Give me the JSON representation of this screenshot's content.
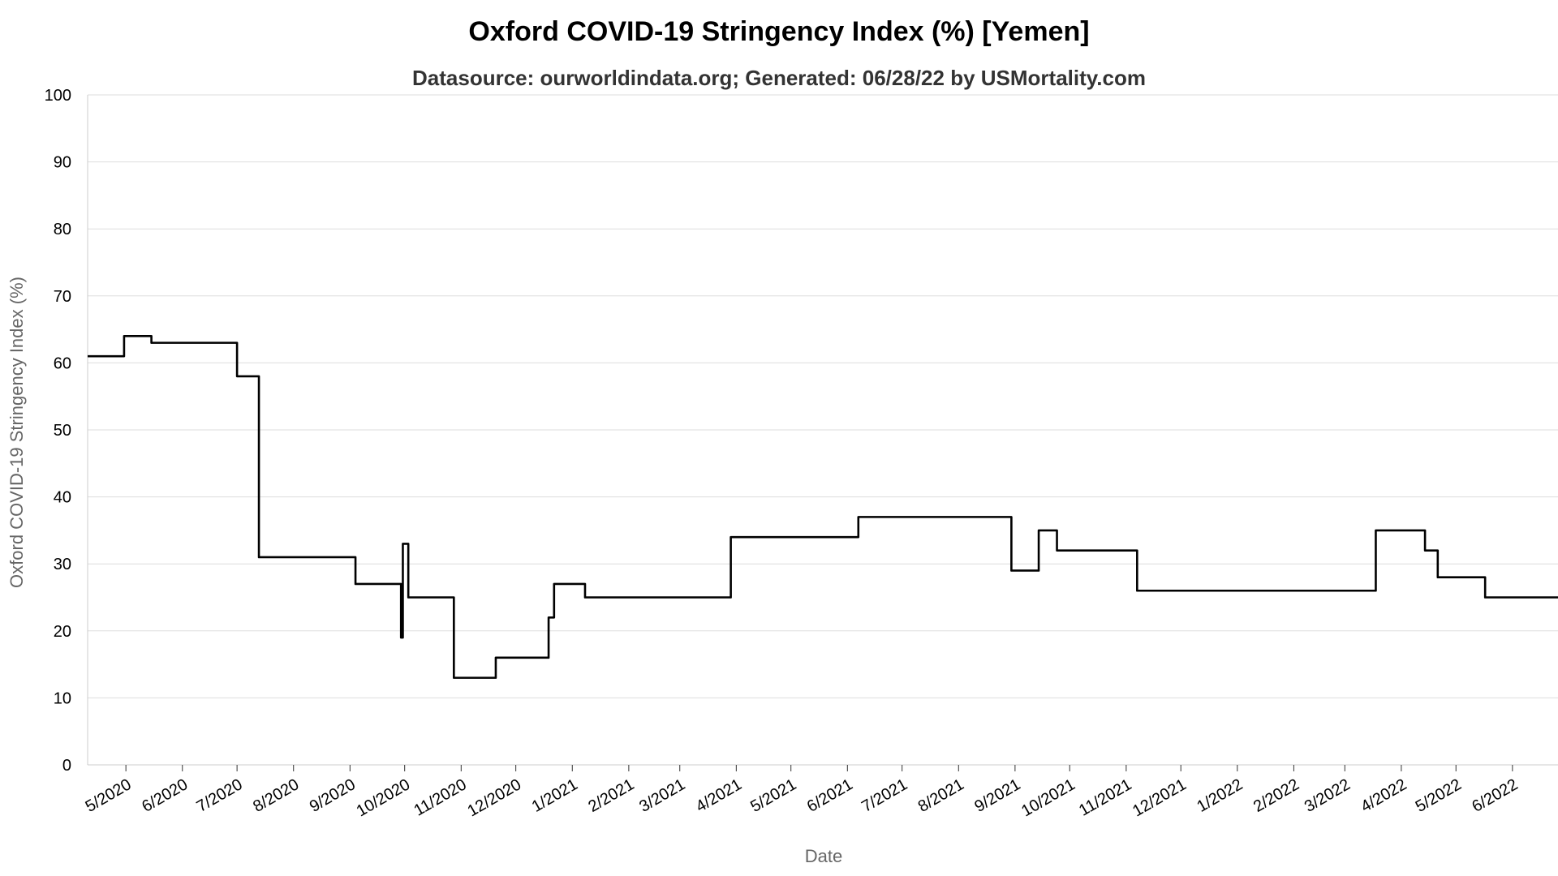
{
  "chart_data": {
    "type": "line",
    "title": "Oxford COVID-19 Stringency Index (%) [Yemen]",
    "subtitle": "Datasource: ourworldindata.org; Generated: 06/28/22 by USMortality.com",
    "xlabel": "Date",
    "ylabel": "Oxford COVID-19 Stringency Index (%)",
    "ylim": [
      0,
      100
    ],
    "yticks": [
      0,
      10,
      20,
      30,
      40,
      50,
      60,
      70,
      80,
      90,
      100
    ],
    "xlim": [
      "2020-04-10",
      "2022-06-26"
    ],
    "grid": true,
    "xticks": [
      {
        "date": "2020-05-01",
        "label": "5/2020"
      },
      {
        "date": "2020-06-01",
        "label": "6/2020"
      },
      {
        "date": "2020-07-01",
        "label": "7/2020"
      },
      {
        "date": "2020-08-01",
        "label": "8/2020"
      },
      {
        "date": "2020-09-01",
        "label": "9/2020"
      },
      {
        "date": "2020-10-01",
        "label": "10/2020"
      },
      {
        "date": "2020-11-01",
        "label": "11/2020"
      },
      {
        "date": "2020-12-01",
        "label": "12/2020"
      },
      {
        "date": "2021-01-01",
        "label": "1/2021"
      },
      {
        "date": "2021-02-01",
        "label": "2/2021"
      },
      {
        "date": "2021-03-01",
        "label": "3/2021"
      },
      {
        "date": "2021-04-01",
        "label": "4/2021"
      },
      {
        "date": "2021-05-01",
        "label": "5/2021"
      },
      {
        "date": "2021-06-01",
        "label": "6/2021"
      },
      {
        "date": "2021-07-01",
        "label": "7/2021"
      },
      {
        "date": "2021-08-01",
        "label": "8/2021"
      },
      {
        "date": "2021-09-01",
        "label": "9/2021"
      },
      {
        "date": "2021-10-01",
        "label": "10/2021"
      },
      {
        "date": "2021-11-01",
        "label": "11/2021"
      },
      {
        "date": "2021-12-01",
        "label": "12/2021"
      },
      {
        "date": "2022-01-01",
        "label": "1/2022"
      },
      {
        "date": "2022-02-01",
        "label": "2/2022"
      },
      {
        "date": "2022-03-01",
        "label": "3/2022"
      },
      {
        "date": "2022-04-01",
        "label": "4/2022"
      },
      {
        "date": "2022-05-01",
        "label": "5/2022"
      },
      {
        "date": "2022-06-01",
        "label": "6/2022"
      }
    ],
    "series": [
      {
        "color": "#000000",
        "step": true,
        "points": [
          [
            "2020-04-10",
            61
          ],
          [
            "2020-04-30",
            64
          ],
          [
            "2020-05-15",
            63
          ],
          [
            "2020-07-01",
            58
          ],
          [
            "2020-07-13",
            31
          ],
          [
            "2020-09-04",
            27
          ],
          [
            "2020-09-29",
            19
          ],
          [
            "2020-09-30",
            33
          ],
          [
            "2020-10-03",
            25
          ],
          [
            "2020-10-28",
            13
          ],
          [
            "2020-11-20",
            16
          ],
          [
            "2020-12-19",
            22
          ],
          [
            "2020-12-22",
            27
          ],
          [
            "2021-01-08",
            25
          ],
          [
            "2021-03-29",
            34
          ],
          [
            "2021-06-07",
            37
          ],
          [
            "2021-08-30",
            29
          ],
          [
            "2021-09-14",
            35
          ],
          [
            "2021-09-24",
            32
          ],
          [
            "2021-11-07",
            26
          ],
          [
            "2022-03-18",
            35
          ],
          [
            "2022-04-14",
            32
          ],
          [
            "2022-04-21",
            28
          ],
          [
            "2022-05-17",
            25
          ],
          [
            "2022-06-26",
            25
          ]
        ]
      }
    ]
  }
}
